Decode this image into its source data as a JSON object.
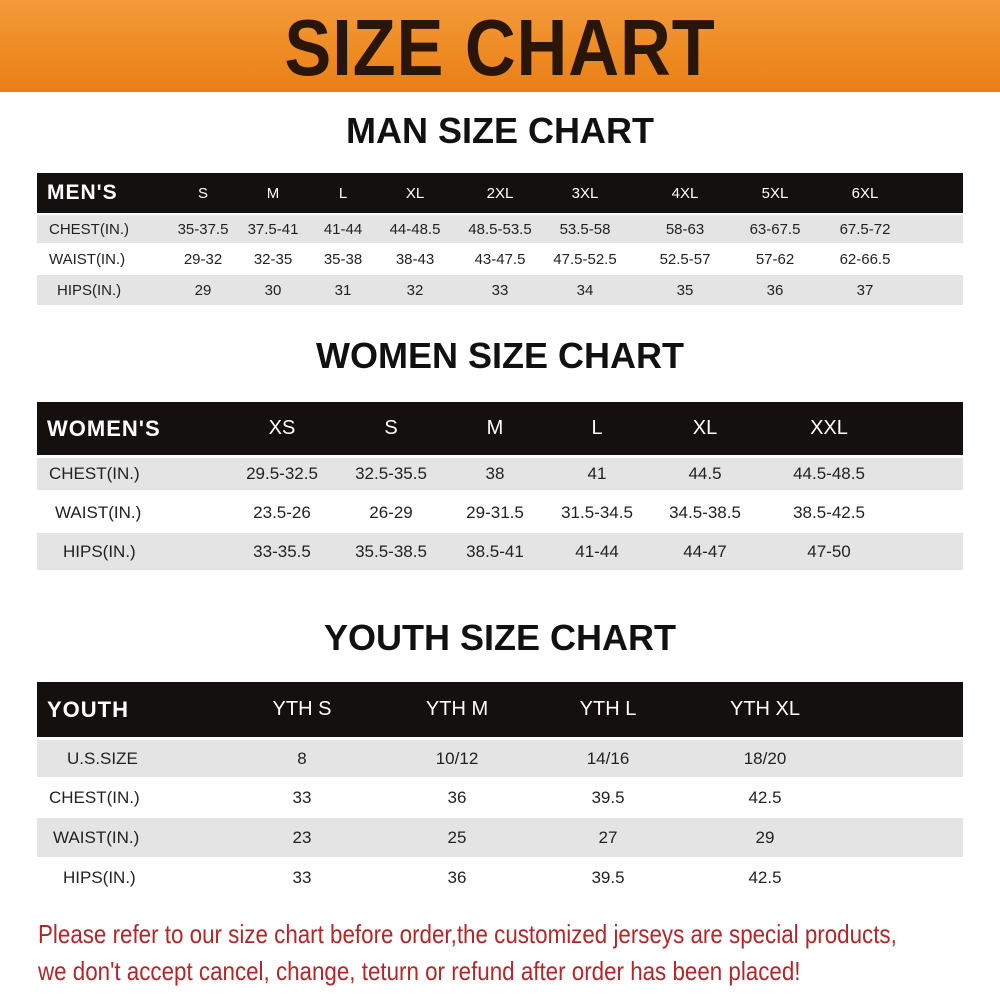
{
  "banner_title": "SIZE CHART",
  "men": {
    "title": "MAN SIZE CHART",
    "header_label": "MEN'S",
    "sizes": [
      "S",
      "M",
      "L",
      "XL",
      "2XL",
      "3XL",
      "4XL",
      "5XL",
      "6XL"
    ],
    "rows": [
      {
        "label": "CHEST(IN.)",
        "values": [
          "35-37.5",
          "37.5-41",
          "41-44",
          "44-48.5",
          "48.5-53.5",
          "53.5-58",
          "58-63",
          "63-67.5",
          "67.5-72"
        ]
      },
      {
        "label": "WAIST(IN.)",
        "values": [
          "29-32",
          "32-35",
          "35-38",
          "38-43",
          "43-47.5",
          "47.5-52.5",
          "52.5-57",
          "57-62",
          "62-66.5"
        ]
      },
      {
        "label": "HIPS(IN.)",
        "values": [
          "29",
          "30",
          "31",
          "32",
          "33",
          "34",
          "35",
          "36",
          "37"
        ]
      }
    ]
  },
  "women": {
    "title": "WOMEN SIZE CHART",
    "header_label": "WOMEN'S",
    "sizes": [
      "XS",
      "S",
      "M",
      "L",
      "XL",
      "XXL"
    ],
    "rows": [
      {
        "label": "CHEST(IN.)",
        "values": [
          "29.5-32.5",
          "32.5-35.5",
          "38",
          "41",
          "44.5",
          "44.5-48.5"
        ]
      },
      {
        "label": "WAIST(IN.)",
        "values": [
          "23.5-26",
          "26-29",
          "29-31.5",
          "31.5-34.5",
          "34.5-38.5",
          "38.5-42.5"
        ]
      },
      {
        "label": "HIPS(IN.)",
        "values": [
          "33-35.5",
          "35.5-38.5",
          "38.5-41",
          "41-44",
          "44-47",
          "47-50"
        ]
      }
    ]
  },
  "youth": {
    "title": "YOUTH SIZE CHART",
    "header_label": "YOUTH",
    "sizes": [
      "YTH S",
      "YTH M",
      "YTH L",
      "YTH XL"
    ],
    "rows": [
      {
        "label": "U.S.SIZE",
        "values": [
          "8",
          "10/12",
          "14/16",
          "18/20"
        ]
      },
      {
        "label": "CHEST(IN.)",
        "values": [
          "33",
          "36",
          "39.5",
          "42.5"
        ]
      },
      {
        "label": "WAIST(IN.)",
        "values": [
          "23",
          "25",
          "27",
          "29"
        ]
      },
      {
        "label": "HIPS(IN.)",
        "values": [
          "33",
          "36",
          "39.5",
          "42.5"
        ]
      }
    ]
  },
  "notice": {
    "line1": "Please refer to our size chart before order,the customized jerseys are special products,",
    "line2": "we don't accept cancel, change, teturn or refund after order has been placed!"
  },
  "colors": {
    "banner": "#ee8a22",
    "header_row": "#141010",
    "stripe": "#e4e4e4",
    "notice": "#b3262a"
  }
}
